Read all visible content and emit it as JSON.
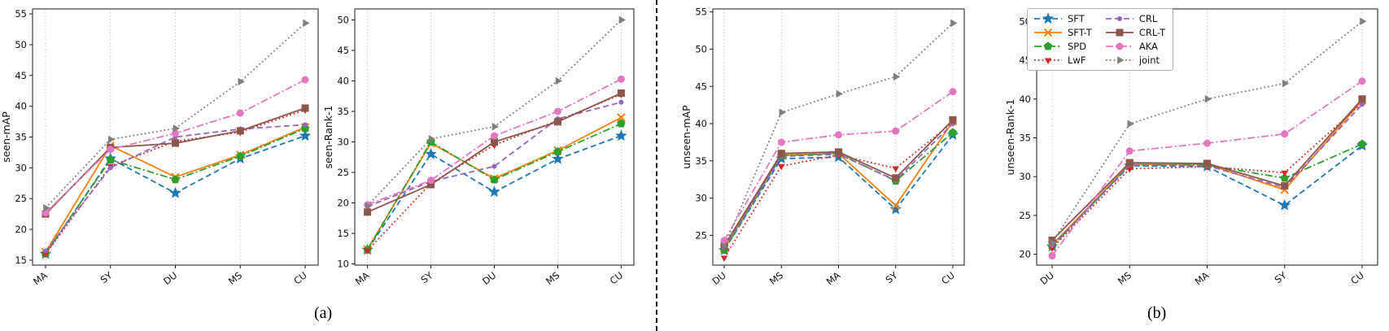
{
  "figure": {
    "caption_a": "(a)",
    "caption_b": "(b)"
  },
  "legend": {
    "columns": [
      [
        "SFT",
        "SFT-T",
        "SPD",
        "LwF"
      ],
      [
        "CRL",
        "CRL-T",
        "AKA",
        "joint"
      ]
    ]
  },
  "styles": {
    "SFT": {
      "color": "#1f77b4",
      "dash": "dashed",
      "marker": "star",
      "size": 6
    },
    "SFT-T": {
      "color": "#ff7f0e",
      "dash": "solid",
      "marker": "x",
      "size": 4.5
    },
    "SPD": {
      "color": "#2ca02c",
      "dash": "dashdot",
      "marker": "pentagon",
      "size": 5
    },
    "LwF": {
      "color": "#d62728",
      "dash": "dotted",
      "marker": "triangle-down",
      "size": 4.5
    },
    "CRL": {
      "color": "#9467bd",
      "dash": "dashed",
      "marker": "circle",
      "size": 3
    },
    "CRL-T": {
      "color": "#8c564b",
      "dash": "solid",
      "marker": "square",
      "size": 4.5
    },
    "AKA": {
      "color": "#e377c2",
      "dash": "dashdot",
      "marker": "circle",
      "size": 4.5
    },
    "joint": {
      "color": "#7f7f7f",
      "dash": "dotted",
      "marker": "triangle-right",
      "size": 5
    }
  },
  "chart_data": [
    {
      "type": "line",
      "ylabel": "seen-mAP",
      "categories": [
        "MA",
        "SY",
        "DU",
        "MS",
        "CU"
      ],
      "ylim": [
        14.2,
        55.8
      ],
      "yticks": [
        15,
        20,
        25,
        30,
        35,
        40,
        45,
        50,
        55
      ],
      "grid": "vertical-dotted",
      "series": [
        {
          "name": "SFT",
          "values": [
            16.0,
            31.5,
            25.9,
            31.5,
            35.2
          ]
        },
        {
          "name": "SFT-T",
          "values": [
            16.3,
            33.6,
            28.5,
            32.1,
            36.6
          ]
        },
        {
          "name": "SPD",
          "values": [
            16.1,
            31.3,
            28.1,
            31.9,
            36.4
          ]
        },
        {
          "name": "LwF",
          "values": [
            16.0,
            30.3,
            34.3,
            35.8,
            39.4
          ]
        },
        {
          "name": "CRL",
          "values": [
            16.5,
            30.0,
            35.0,
            36.3,
            37.0
          ]
        },
        {
          "name": "CRL-T",
          "values": [
            22.5,
            33.3,
            34.0,
            36.0,
            39.7
          ]
        },
        {
          "name": "AKA",
          "values": [
            22.7,
            33.0,
            35.6,
            38.9,
            44.3
          ]
        },
        {
          "name": "joint",
          "values": [
            23.5,
            34.6,
            36.4,
            44.0,
            53.5
          ]
        }
      ]
    },
    {
      "type": "line",
      "ylabel": "seen-Rank-1",
      "categories": [
        "MA",
        "SY",
        "DU",
        "MS",
        "CU"
      ],
      "ylim": [
        9.8,
        51.8
      ],
      "yticks": [
        10,
        15,
        20,
        25,
        30,
        35,
        40,
        45,
        50
      ],
      "grid": "vertical-dotted",
      "series": [
        {
          "name": "SFT",
          "values": [
            12.3,
            28.0,
            21.8,
            27.2,
            31.0
          ]
        },
        {
          "name": "SFT-T",
          "values": [
            12.4,
            29.8,
            24.0,
            28.6,
            34.0
          ]
        },
        {
          "name": "SPD",
          "values": [
            12.3,
            30.0,
            23.8,
            28.4,
            33.0
          ]
        },
        {
          "name": "LwF",
          "values": [
            12.2,
            23.2,
            29.5,
            33.5,
            37.8
          ]
        },
        {
          "name": "CRL",
          "values": [
            19.4,
            23.5,
            26.0,
            33.8,
            36.5
          ]
        },
        {
          "name": "CRL-T",
          "values": [
            18.5,
            23.0,
            30.0,
            33.3,
            38.0
          ]
        },
        {
          "name": "AKA",
          "values": [
            19.7,
            23.7,
            31.0,
            35.0,
            40.3
          ]
        },
        {
          "name": "joint",
          "values": [
            19.5,
            30.5,
            32.5,
            40.0,
            50.0
          ]
        }
      ]
    },
    {
      "type": "line",
      "ylabel": "unseen-mAP",
      "categories": [
        "DU",
        "MS",
        "MA",
        "SY",
        "CU"
      ],
      "ylim": [
        21.0,
        55.4
      ],
      "yticks": [
        25,
        30,
        35,
        40,
        45,
        50,
        55
      ],
      "grid": "vertical-dotted",
      "series": [
        {
          "name": "SFT",
          "values": [
            23.0,
            35.3,
            35.5,
            28.5,
            38.5
          ]
        },
        {
          "name": "SFT-T",
          "values": [
            23.2,
            35.8,
            36.0,
            29.0,
            40.3
          ]
        },
        {
          "name": "SPD",
          "values": [
            23.0,
            35.7,
            36.0,
            32.3,
            38.8
          ]
        },
        {
          "name": "LwF",
          "values": [
            22.0,
            34.3,
            35.8,
            34.0,
            40.2
          ]
        },
        {
          "name": "CRL",
          "values": [
            23.3,
            35.6,
            35.9,
            32.4,
            40.0
          ]
        },
        {
          "name": "CRL-T",
          "values": [
            23.6,
            36.0,
            36.2,
            32.7,
            40.5
          ]
        },
        {
          "name": "AKA",
          "values": [
            24.3,
            37.5,
            38.5,
            39.0,
            44.3
          ]
        },
        {
          "name": "joint",
          "values": [
            23.5,
            41.5,
            44.0,
            46.3,
            53.5
          ]
        }
      ]
    },
    {
      "type": "line",
      "ylabel": "unseen-Rank-1",
      "categories": [
        "DU",
        "MS",
        "MA",
        "SY",
        "CU"
      ],
      "ylim": [
        18.6,
        51.6
      ],
      "yticks": [
        20,
        25,
        30,
        35,
        40,
        45,
        50
      ],
      "grid": "vertical-dotted",
      "series": [
        {
          "name": "SFT",
          "values": [
            21.0,
            31.4,
            31.3,
            26.3,
            34.0
          ]
        },
        {
          "name": "SFT-T",
          "values": [
            21.2,
            31.6,
            31.6,
            28.3,
            39.8
          ]
        },
        {
          "name": "SPD",
          "values": [
            21.0,
            31.5,
            31.5,
            29.8,
            34.2
          ]
        },
        {
          "name": "LwF",
          "values": [
            20.8,
            31.0,
            31.3,
            30.5,
            39.5
          ]
        },
        {
          "name": "CRL",
          "values": [
            21.1,
            31.5,
            31.4,
            28.6,
            39.3
          ]
        },
        {
          "name": "CRL-T",
          "values": [
            21.8,
            31.8,
            31.7,
            28.8,
            40.0
          ]
        },
        {
          "name": "AKA",
          "values": [
            19.8,
            33.3,
            34.3,
            35.5,
            42.3
          ]
        },
        {
          "name": "joint",
          "values": [
            21.5,
            36.8,
            40.0,
            42.0,
            50.0
          ]
        }
      ]
    }
  ]
}
